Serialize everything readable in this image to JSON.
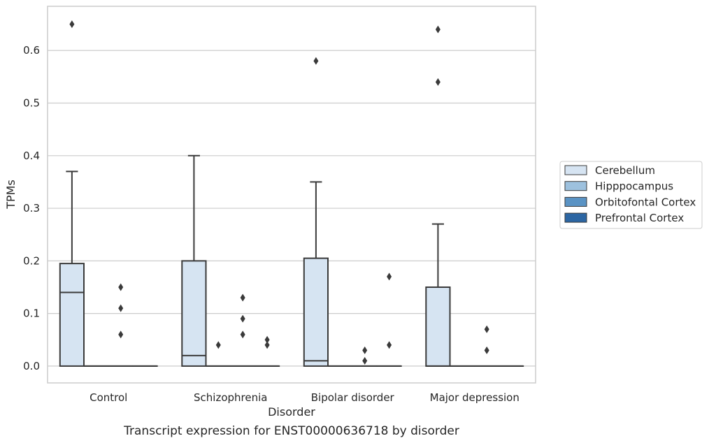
{
  "chart_data": {
    "type": "box",
    "caption": "Transcript expression for ENST00000636718 by disorder",
    "xlabel": "Disorder",
    "ylabel": "TPMs",
    "ylim": [
      -0.032,
      0.684
    ],
    "yticks": [
      "0.0",
      "0.1",
      "0.2",
      "0.3",
      "0.4",
      "0.5",
      "0.6"
    ],
    "grid": "horizontal",
    "categories": [
      "Control",
      "Schizophrenia",
      "Bipolar disorder",
      "Major depression"
    ],
    "legend": {
      "placement": "right",
      "entries": [
        {
          "name": "Cerebellum",
          "color": "#d6e4f2"
        },
        {
          "name": "Hipppocampus",
          "color": "#9dc1de"
        },
        {
          "name": "Orbitofontal Cortex",
          "color": "#5a93c4"
        },
        {
          "name": "Prefrontal Cortex",
          "color": "#2c66a3"
        }
      ]
    },
    "series": [
      {
        "name": "Cerebellum",
        "boxes": [
          {
            "q1": 0,
            "median": 0.14,
            "q3": 0.195,
            "whisker_low": 0,
            "whisker_high": 0.37,
            "outliers": [
              0.65
            ]
          },
          {
            "q1": 0,
            "median": 0.02,
            "q3": 0.2,
            "whisker_low": 0,
            "whisker_high": 0.4,
            "outliers": []
          },
          {
            "q1": 0,
            "median": 0.01,
            "q3": 0.205,
            "whisker_low": 0,
            "whisker_high": 0.35,
            "outliers": [
              0.58
            ]
          },
          {
            "q1": 0,
            "median": 0,
            "q3": 0.15,
            "whisker_low": 0,
            "whisker_high": 0.27,
            "outliers": [
              0.64,
              0.54
            ]
          }
        ]
      },
      {
        "name": "Hipppocampus",
        "boxes": [
          {
            "q1": 0,
            "median": 0,
            "q3": 0,
            "whisker_low": 0,
            "whisker_high": 0,
            "outliers": []
          },
          {
            "q1": 0,
            "median": 0,
            "q3": 0,
            "whisker_low": 0,
            "whisker_high": 0,
            "outliers": [
              0.04
            ]
          },
          {
            "q1": 0,
            "median": 0,
            "q3": 0,
            "whisker_low": 0,
            "whisker_high": 0,
            "outliers": []
          },
          {
            "q1": 0,
            "median": 0,
            "q3": 0,
            "whisker_low": 0,
            "whisker_high": 0,
            "outliers": []
          }
        ]
      },
      {
        "name": "Orbitofontal Cortex",
        "boxes": [
          {
            "q1": 0,
            "median": 0,
            "q3": 0,
            "whisker_low": 0,
            "whisker_high": 0,
            "outliers": [
              0.15,
              0.11,
              0.06
            ]
          },
          {
            "q1": 0,
            "median": 0,
            "q3": 0,
            "whisker_low": 0,
            "whisker_high": 0,
            "outliers": [
              0.13,
              0.09,
              0.06
            ]
          },
          {
            "q1": 0,
            "median": 0,
            "q3": 0,
            "whisker_low": 0,
            "whisker_high": 0,
            "outliers": [
              0.03,
              0.01
            ]
          },
          {
            "q1": 0,
            "median": 0,
            "q3": 0,
            "whisker_low": 0,
            "whisker_high": 0,
            "outliers": [
              0.07,
              0.03
            ]
          }
        ]
      },
      {
        "name": "Prefrontal Cortex",
        "boxes": [
          {
            "q1": 0,
            "median": 0,
            "q3": 0,
            "whisker_low": 0,
            "whisker_high": 0,
            "outliers": []
          },
          {
            "q1": 0,
            "median": 0,
            "q3": 0,
            "whisker_low": 0,
            "whisker_high": 0,
            "outliers": [
              0.05,
              0.04
            ]
          },
          {
            "q1": 0,
            "median": 0,
            "q3": 0,
            "whisker_low": 0,
            "whisker_high": 0,
            "outliers": [
              0.17,
              0.04
            ]
          },
          {
            "q1": 0,
            "median": 0,
            "q3": 0,
            "whisker_low": 0,
            "whisker_high": 0,
            "outliers": []
          }
        ]
      }
    ]
  }
}
